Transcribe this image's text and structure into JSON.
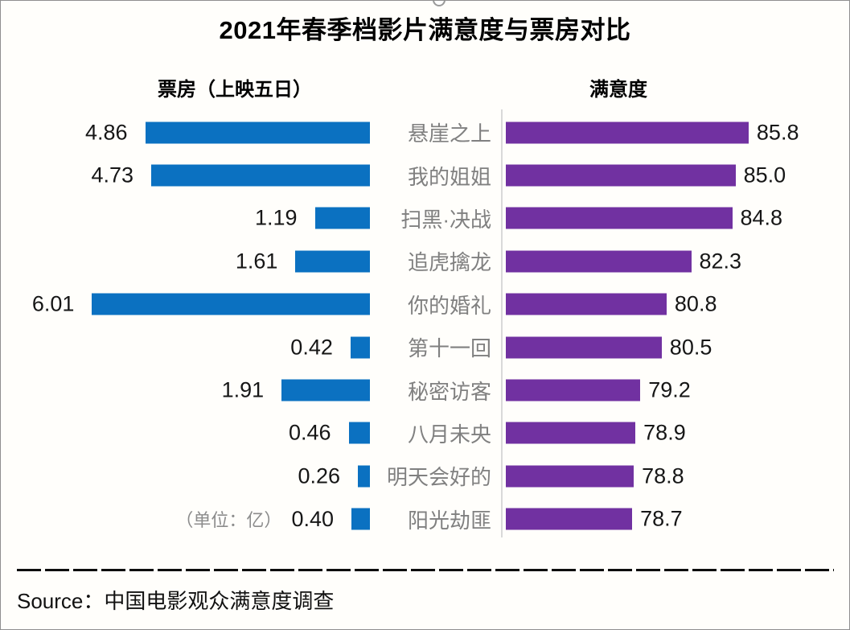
{
  "title": "2021年春季档影片满意度与票房对比",
  "columns": {
    "left_header": "票房（上映五日）",
    "right_header": "满意度"
  },
  "unit_note": "（单位：亿）",
  "source": "Source：中国电影观众满意度调查",
  "colors": {
    "boxoffice_bar": "#0b71c1",
    "satisfaction_bar": "#7131a1",
    "movie_label": "#808080",
    "unit_note": "#8c8c8c",
    "divider": "#d9d9d9"
  },
  "chart_data": {
    "type": "bar",
    "subtype": "diverging-tornado-comparison",
    "title": "2021年春季档影片满意度与票房对比",
    "categories": [
      "悬崖之上",
      "我的姐姐",
      "扫黑·决战",
      "追虎擒龙",
      "你的婚礼",
      "第十一回",
      "秘密访客",
      "八月未央",
      "明天会好的",
      "阳光劫匪"
    ],
    "series": [
      {
        "name": "票房（上映五日）",
        "unit": "亿",
        "direction": "right-to-left",
        "xlim": [
          0,
          6.2
        ],
        "decimals": 2,
        "values": [
          4.86,
          4.73,
          1.19,
          1.61,
          6.01,
          0.42,
          1.91,
          0.46,
          0.26,
          0.4
        ]
      },
      {
        "name": "满意度",
        "unit": "",
        "direction": "left-to-right",
        "xlim": [
          71,
          86
        ],
        "decimals": 1,
        "values": [
          85.8,
          85.0,
          84.8,
          82.3,
          80.8,
          80.5,
          79.2,
          78.9,
          78.8,
          78.7
        ]
      }
    ],
    "value_labels_shown": true,
    "grid": false,
    "legend": "none"
  }
}
